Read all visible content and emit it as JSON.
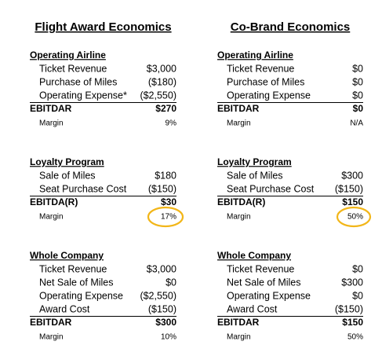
{
  "columns": [
    {
      "title": "Flight Award Economics",
      "sections": [
        {
          "heading": "Operating Airline",
          "rows": [
            [
              "Ticket Revenue",
              "$3,000"
            ],
            [
              "Purchase of Miles",
              "($180)"
            ],
            [
              "Operating Expense*",
              "($2,550)"
            ]
          ],
          "total": [
            "EBITDAR",
            "$270"
          ],
          "margin": [
            "Margin",
            "9%"
          ]
        },
        {
          "heading": "Loyalty Program",
          "rows": [
            [
              "Sale of Miles",
              "$180"
            ],
            [
              "Seat Purchase Cost",
              "($150)"
            ]
          ],
          "total": [
            "EBITDA(R)",
            "$30"
          ],
          "margin": [
            "Margin",
            "17%"
          ]
        },
        {
          "heading": "Whole Company",
          "rows": [
            [
              "Ticket Revenue",
              "$3,000"
            ],
            [
              "Net Sale of Miles",
              "$0"
            ],
            [
              "Operating Expense",
              "($2,550)"
            ],
            [
              "Award Cost",
              "($150)"
            ]
          ],
          "total": [
            "EBITDAR",
            "$300"
          ],
          "margin": [
            "Margin",
            "10%"
          ]
        }
      ]
    },
    {
      "title": "Co-Brand Economics",
      "sections": [
        {
          "heading": "Operating Airline",
          "rows": [
            [
              "Ticket Revenue",
              "$0"
            ],
            [
              "Purchase of Miles",
              "$0"
            ],
            [
              "Operating Expense",
              "$0"
            ]
          ],
          "total": [
            "EBITDAR",
            "$0"
          ],
          "margin": [
            "Margin",
            "N/A"
          ]
        },
        {
          "heading": "Loyalty Program",
          "rows": [
            [
              "Sale of Miles",
              "$300"
            ],
            [
              "Seat Purchase Cost",
              "($150)"
            ]
          ],
          "total": [
            "EBITDA(R)",
            "$150"
          ],
          "margin": [
            "Margin",
            "50%"
          ]
        },
        {
          "heading": "Whole Company",
          "rows": [
            [
              "Ticket Revenue",
              "$0"
            ],
            [
              "Net Sale of Miles",
              "$300"
            ],
            [
              "Operating Expense",
              "$0"
            ],
            [
              "Award Cost",
              "($150)"
            ]
          ],
          "total": [
            "EBITDAR",
            "$150"
          ],
          "margin": [
            "Margin",
            "50%"
          ]
        }
      ]
    }
  ]
}
